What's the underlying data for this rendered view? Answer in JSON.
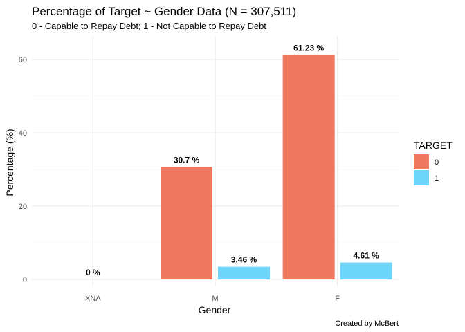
{
  "chart_data": {
    "type": "bar",
    "title": "Percentage of Target ~ Gender Data (N = 307,511)",
    "subtitle": "0 - Capable to Repay Debt; 1 - Not Capable to Repay Debt",
    "xlabel": "Gender",
    "ylabel": "Percentage (%)",
    "caption": "Created by McBert",
    "categories": [
      "XNA",
      "M",
      "F"
    ],
    "ylim": [
      0,
      65
    ],
    "yticks": [
      0,
      20,
      40,
      60
    ],
    "grid": true,
    "legend": {
      "title": "TARGET",
      "position": "right"
    },
    "series": [
      {
        "name": "0",
        "color": "#F07860",
        "values": [
          0,
          30.7,
          61.23
        ],
        "labels": [
          "0 %",
          "30.7 %",
          "61.23 %"
        ]
      },
      {
        "name": "1",
        "color": "#6DD5FA",
        "values": [
          0,
          3.46,
          4.61
        ],
        "labels": [
          "",
          "3.46 %",
          "4.61 %"
        ]
      }
    ]
  }
}
